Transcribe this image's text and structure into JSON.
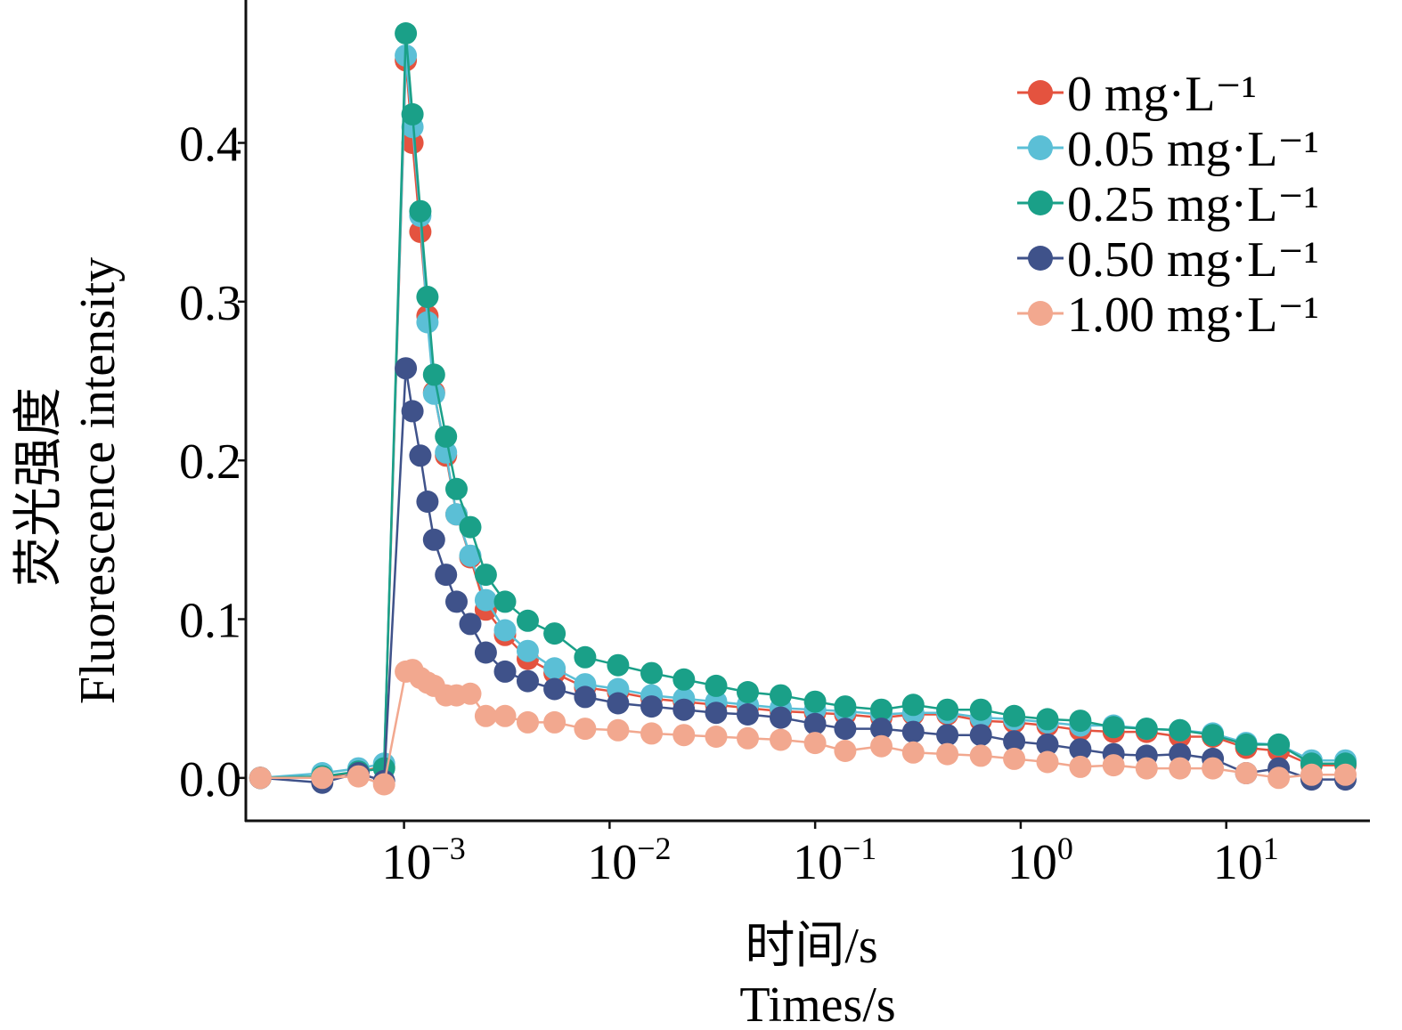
{
  "chart_data": {
    "type": "line",
    "xlabel_lines": [
      "时间/s",
      "Times/s"
    ],
    "ylabel_lines": [
      "荧光强度",
      "Fluorescence intensity"
    ],
    "x_scale": "log",
    "xlim": [
      0.00017,
      50
    ],
    "ylim": [
      -0.027,
      0.49
    ],
    "yticks": [
      0.0,
      0.1,
      0.2,
      0.3,
      0.4
    ],
    "ytick_labels": [
      "0.0",
      "0.1",
      "0.2",
      "0.3",
      "0.4"
    ],
    "xticks": [
      0.001,
      0.01,
      0.1,
      1,
      10
    ],
    "xtick_labels": [
      {
        "base": "10",
        "exp": "−3"
      },
      {
        "base": "10",
        "exp": "−2"
      },
      {
        "base": "10",
        "exp": "−1"
      },
      {
        "base": "10",
        "exp": "0"
      },
      {
        "base": "10",
        "exp": "1"
      }
    ],
    "grid": false,
    "legend_position": "top-right",
    "x": [
      0.0002,
      0.0004,
      0.0006,
      0.0008,
      0.00102,
      0.0011,
      0.0012,
      0.0013,
      0.0014,
      0.0016,
      0.0018,
      0.0021,
      0.0025,
      0.0031,
      0.004,
      0.0054,
      0.0076,
      0.011,
      0.016,
      0.023,
      0.033,
      0.047,
      0.068,
      0.1,
      0.14,
      0.21,
      0.3,
      0.44,
      0.64,
      0.93,
      1.35,
      1.95,
      2.83,
      4.1,
      5.95,
      8.6,
      12.5,
      18,
      26,
      38
    ],
    "series": [
      {
        "name": "0 mg·L⁻¹",
        "color": "#e4533f",
        "values": [
          0.0,
          0.0,
          0.004,
          0.007,
          0.452,
          0.4,
          0.344,
          0.291,
          0.243,
          0.203,
          0.166,
          0.139,
          0.106,
          0.09,
          0.075,
          0.066,
          0.057,
          0.054,
          0.05,
          0.048,
          0.046,
          0.044,
          0.042,
          0.041,
          0.04,
          0.038,
          0.04,
          0.04,
          0.036,
          0.035,
          0.033,
          0.03,
          0.029,
          0.029,
          0.026,
          0.026,
          0.019,
          0.017,
          0.008,
          0.008
        ]
      },
      {
        "name": "0.05 mg·L⁻¹",
        "color": "#5bbfd6",
        "values": [
          0.0,
          0.003,
          0.006,
          0.009,
          0.455,
          0.41,
          0.354,
          0.287,
          0.242,
          0.205,
          0.166,
          0.14,
          0.112,
          0.093,
          0.08,
          0.069,
          0.059,
          0.056,
          0.052,
          0.05,
          0.048,
          0.046,
          0.044,
          0.043,
          0.042,
          0.04,
          0.041,
          0.041,
          0.038,
          0.037,
          0.035,
          0.033,
          0.033,
          0.031,
          0.03,
          0.028,
          0.022,
          0.021,
          0.011,
          0.011
        ]
      },
      {
        "name": "0.25 mg·L⁻¹",
        "color": "#1aa088",
        "values": [
          0.0,
          0.001,
          0.004,
          0.006,
          0.469,
          0.418,
          0.357,
          0.303,
          0.254,
          0.215,
          0.182,
          0.158,
          0.128,
          0.111,
          0.099,
          0.091,
          0.076,
          0.071,
          0.066,
          0.062,
          0.058,
          0.054,
          0.052,
          0.048,
          0.045,
          0.043,
          0.046,
          0.043,
          0.043,
          0.039,
          0.037,
          0.036,
          0.032,
          0.031,
          0.03,
          0.027,
          0.021,
          0.021,
          0.009,
          0.009
        ]
      },
      {
        "name": "0.50 mg·L⁻¹",
        "color": "#3f528a",
        "values": [
          0.0,
          -0.003,
          0.003,
          -0.002,
          0.258,
          0.231,
          0.203,
          0.174,
          0.15,
          0.128,
          0.111,
          0.097,
          0.079,
          0.067,
          0.061,
          0.056,
          0.051,
          0.047,
          0.045,
          0.043,
          0.041,
          0.04,
          0.038,
          0.034,
          0.031,
          0.031,
          0.029,
          0.027,
          0.027,
          0.023,
          0.021,
          0.018,
          0.015,
          0.014,
          0.015,
          0.012,
          0.003,
          0.006,
          -0.001,
          -0.001
        ]
      },
      {
        "name": "1.00 mg·L⁻¹",
        "color": "#f2a88f",
        "values": [
          0.0,
          0.0,
          0.001,
          -0.004,
          0.067,
          0.068,
          0.063,
          0.06,
          0.058,
          0.052,
          0.052,
          0.053,
          0.039,
          0.039,
          0.035,
          0.035,
          0.031,
          0.03,
          0.028,
          0.027,
          0.026,
          0.025,
          0.024,
          0.022,
          0.017,
          0.02,
          0.016,
          0.015,
          0.014,
          0.012,
          0.01,
          0.007,
          0.008,
          0.006,
          0.006,
          0.006,
          0.003,
          0.0,
          0.002,
          0.002
        ]
      }
    ]
  }
}
